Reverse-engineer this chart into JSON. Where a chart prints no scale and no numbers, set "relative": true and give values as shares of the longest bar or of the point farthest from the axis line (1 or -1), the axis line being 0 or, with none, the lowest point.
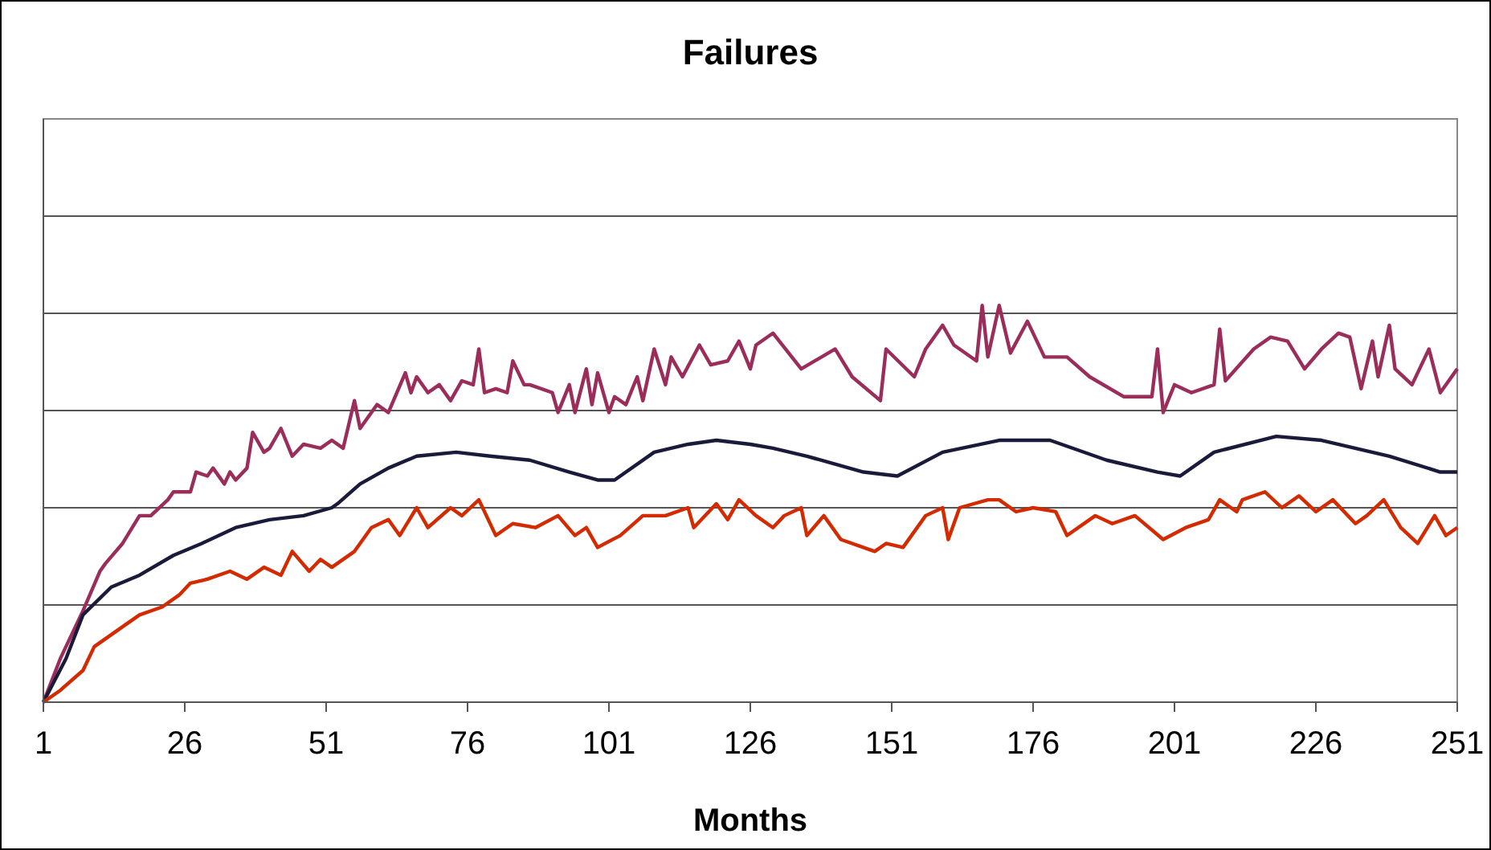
{
  "chart_data": {
    "type": "line",
    "title": "Failures",
    "xlabel": "Months",
    "relative": true,
    "grid": true,
    "xlim": [
      1,
      251
    ],
    "xticks": [
      1,
      26,
      51,
      76,
      101,
      126,
      151,
      176,
      201,
      226,
      251
    ],
    "series": [
      {
        "color": "#9b2d5a",
        "x": [
          1,
          4,
          8,
          11,
          12,
          15,
          18,
          20,
          23,
          24,
          27,
          28,
          30,
          31,
          33,
          34,
          35,
          37,
          38,
          40,
          41,
          43,
          45,
          47,
          50,
          52,
          54,
          56,
          57,
          60,
          62,
          65,
          66,
          67,
          69,
          71,
          73,
          75,
          77,
          78,
          79,
          81,
          83,
          84,
          86,
          87,
          91,
          92,
          94,
          95,
          97,
          98,
          99,
          101,
          102,
          104,
          106,
          107,
          109,
          111,
          112,
          114,
          117,
          119,
          122,
          124,
          126,
          127,
          130,
          135,
          141,
          144,
          149,
          150,
          155,
          157,
          160,
          162,
          166,
          167,
          168,
          170,
          172,
          175,
          178,
          182,
          186,
          192,
          197,
          198,
          199,
          201,
          204,
          208,
          209,
          210,
          215,
          218,
          221,
          224,
          227,
          230,
          232,
          234,
          236,
          237,
          239,
          240,
          243,
          246,
          248,
          251
        ],
        "values": [
          0,
          0.11,
          0.23,
          0.33,
          0.35,
          0.4,
          0.47,
          0.47,
          0.51,
          0.53,
          0.53,
          0.58,
          0.57,
          0.59,
          0.55,
          0.58,
          0.56,
          0.59,
          0.68,
          0.63,
          0.64,
          0.69,
          0.62,
          0.65,
          0.64,
          0.66,
          0.64,
          0.76,
          0.69,
          0.75,
          0.73,
          0.83,
          0.78,
          0.82,
          0.78,
          0.8,
          0.76,
          0.81,
          0.8,
          0.89,
          0.78,
          0.79,
          0.78,
          0.86,
          0.8,
          0.8,
          0.78,
          0.73,
          0.8,
          0.73,
          0.84,
          0.75,
          0.83,
          0.73,
          0.77,
          0.75,
          0.82,
          0.76,
          0.89,
          0.8,
          0.87,
          0.82,
          0.9,
          0.85,
          0.86,
          0.91,
          0.84,
          0.9,
          0.93,
          0.84,
          0.89,
          0.82,
          0.76,
          0.89,
          0.82,
          0.89,
          0.95,
          0.9,
          0.86,
          1.0,
          0.87,
          1.0,
          0.88,
          0.96,
          0.87,
          0.87,
          0.82,
          0.77,
          0.77,
          0.89,
          0.73,
          0.8,
          0.78,
          0.8,
          0.94,
          0.81,
          0.89,
          0.92,
          0.91,
          0.84,
          0.89,
          0.93,
          0.92,
          0.79,
          0.91,
          0.82,
          0.95,
          0.84,
          0.8,
          0.89,
          0.78,
          0.84
        ]
      },
      {
        "color": "#1a1a3a",
        "x": [
          1,
          5,
          8,
          13,
          18,
          24,
          29,
          35,
          41,
          47,
          52,
          53,
          57,
          62,
          67,
          74,
          80,
          87,
          94,
          99,
          102,
          109,
          115,
          120,
          126,
          130,
          136,
          146,
          152,
          160,
          170,
          179,
          189,
          198,
          202,
          208,
          219,
          227,
          239,
          248,
          251
        ],
        "values": [
          0,
          0.11,
          0.22,
          0.29,
          0.32,
          0.37,
          0.4,
          0.44,
          0.46,
          0.47,
          0.49,
          0.5,
          0.55,
          0.59,
          0.62,
          0.63,
          0.62,
          0.61,
          0.58,
          0.56,
          0.56,
          0.63,
          0.65,
          0.66,
          0.65,
          0.64,
          0.62,
          0.58,
          0.57,
          0.63,
          0.66,
          0.66,
          0.61,
          0.58,
          0.57,
          0.63,
          0.67,
          0.66,
          0.62,
          0.58,
          0.58
        ]
      },
      {
        "color": "#d42a00",
        "x": [
          1,
          4,
          8,
          10,
          15,
          18,
          22,
          25,
          27,
          30,
          34,
          37,
          40,
          43,
          45,
          48,
          50,
          52,
          56,
          59,
          62,
          64,
          67,
          69,
          73,
          75,
          78,
          81,
          84,
          88,
          92,
          95,
          97,
          99,
          103,
          107,
          111,
          115,
          116,
          120,
          122,
          124,
          127,
          130,
          132,
          135,
          136,
          139,
          142,
          148,
          150,
          153,
          157,
          160,
          161,
          163,
          168,
          170,
          173,
          176,
          180,
          182,
          187,
          190,
          194,
          199,
          203,
          207,
          209,
          212,
          213,
          217,
          220,
          223,
          226,
          229,
          233,
          235,
          238,
          241,
          244,
          247,
          249,
          251
        ],
        "values": [
          0,
          0.03,
          0.08,
          0.14,
          0.19,
          0.22,
          0.24,
          0.27,
          0.3,
          0.31,
          0.33,
          0.31,
          0.34,
          0.32,
          0.38,
          0.33,
          0.36,
          0.34,
          0.38,
          0.44,
          0.46,
          0.42,
          0.49,
          0.44,
          0.49,
          0.47,
          0.51,
          0.42,
          0.45,
          0.44,
          0.47,
          0.42,
          0.44,
          0.39,
          0.42,
          0.47,
          0.47,
          0.49,
          0.44,
          0.5,
          0.46,
          0.51,
          0.47,
          0.44,
          0.47,
          0.49,
          0.42,
          0.47,
          0.41,
          0.38,
          0.4,
          0.39,
          0.47,
          0.49,
          0.41,
          0.49,
          0.51,
          0.51,
          0.48,
          0.49,
          0.48,
          0.42,
          0.47,
          0.45,
          0.47,
          0.41,
          0.44,
          0.46,
          0.51,
          0.48,
          0.51,
          0.53,
          0.49,
          0.52,
          0.48,
          0.51,
          0.45,
          0.47,
          0.51,
          0.44,
          0.4,
          0.47,
          0.42,
          0.44
        ]
      }
    ]
  }
}
